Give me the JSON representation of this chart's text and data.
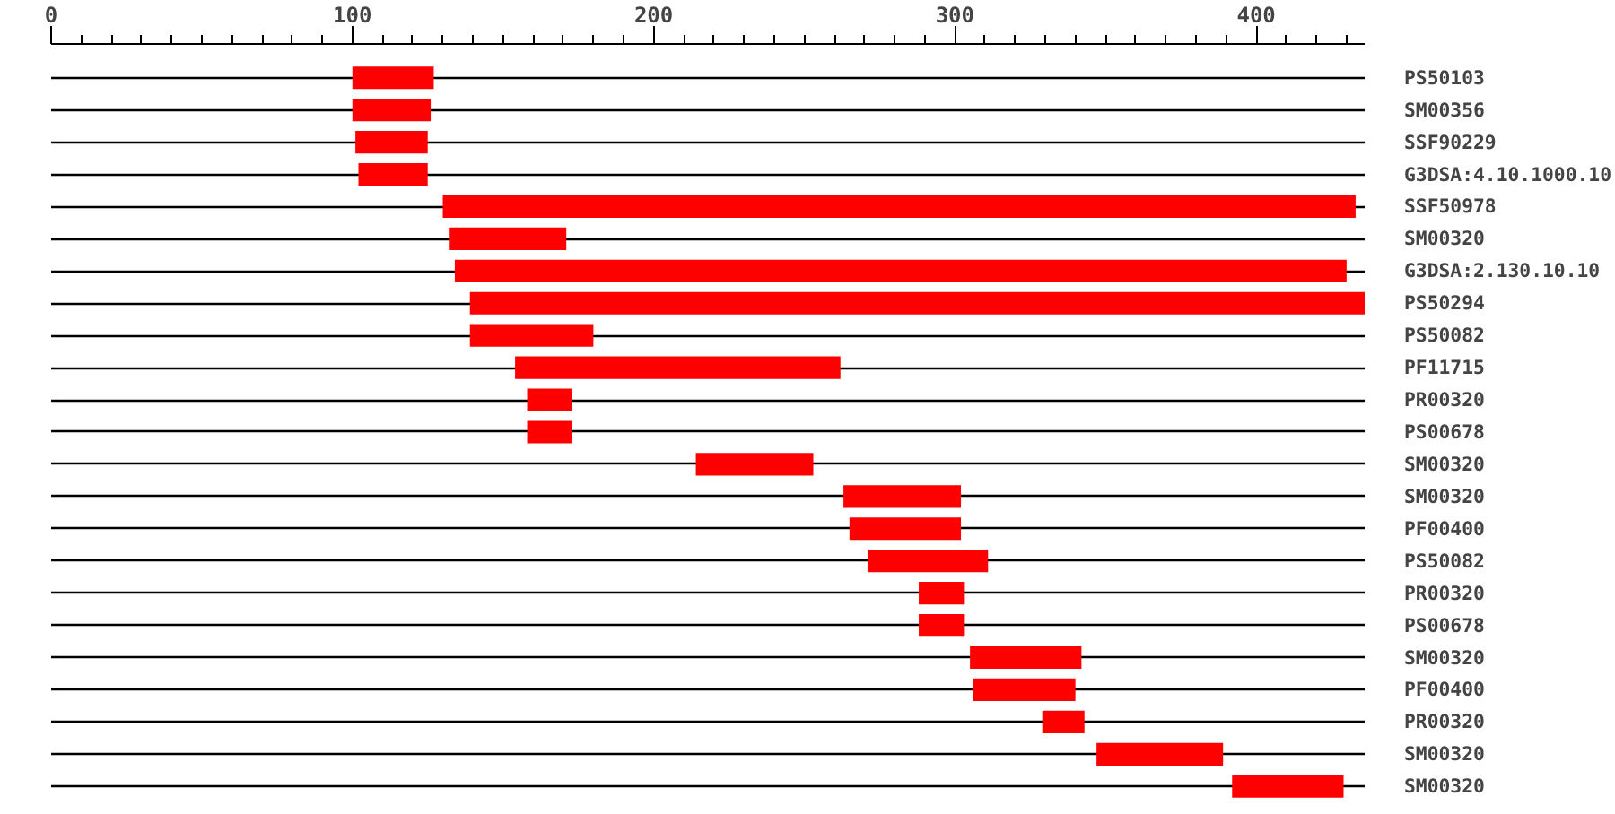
{
  "chart_data": {
    "type": "bar",
    "orientation": "horizontal",
    "categories": [
      "PS50103",
      "SM00356",
      "SSF90229",
      "G3DSA:4.10.1000.10",
      "SSF50978",
      "SM00320",
      "G3DSA:2.130.10.10",
      "PS50294",
      "PS50082",
      "PF11715",
      "PR00320",
      "PS00678",
      "SM00320",
      "SM00320",
      "PF00400",
      "PS50082",
      "PR00320",
      "PS00678",
      "SM00320",
      "PF00400",
      "PR00320",
      "SM00320",
      "SM00320"
    ],
    "base": [
      100,
      100,
      101,
      102,
      130,
      132,
      134,
      139,
      139,
      154,
      158,
      158,
      214,
      263,
      265,
      271,
      288,
      288,
      305,
      306,
      329,
      347,
      392
    ],
    "values": [
      27,
      26,
      24,
      23,
      303,
      39,
      296,
      297,
      41,
      108,
      15,
      15,
      39,
      39,
      37,
      40,
      15,
      15,
      37,
      34,
      14,
      42,
      37
    ],
    "color": "#ff0000",
    "xlim": [
      0,
      436
    ],
    "xticks": [
      0,
      {
        "value": 10,
        "label": null
      },
      {
        "value": 20,
        "label": null
      },
      {
        "value": 30,
        "label": null
      },
      {
        "value": 40,
        "label": null
      },
      {
        "value": 50,
        "label": null
      },
      {
        "value": 60,
        "label": null
      },
      {
        "value": 70,
        "label": null
      },
      {
        "value": 80,
        "label": null
      },
      {
        "value": 90,
        "label": null
      },
      100,
      {
        "value": 110,
        "label": null
      },
      {
        "value": 120,
        "label": null
      },
      {
        "value": 130,
        "label": null
      },
      {
        "value": 140,
        "label": null
      },
      {
        "value": 150,
        "label": null
      },
      {
        "value": 160,
        "label": null
      },
      {
        "value": 170,
        "label": null
      },
      {
        "value": 180,
        "label": null
      },
      {
        "value": 190,
        "label": null
      },
      200,
      {
        "value": 210,
        "label": null
      },
      {
        "value": 220,
        "label": null
      },
      {
        "value": 230,
        "label": null
      },
      {
        "value": 240,
        "label": null
      },
      {
        "value": 250,
        "label": null
      },
      {
        "value": 260,
        "label": null
      },
      {
        "value": 270,
        "label": null
      },
      {
        "value": 280,
        "label": null
      },
      {
        "value": 290,
        "label": null
      },
      300,
      {
        "value": 310,
        "label": null
      },
      {
        "value": 320,
        "label": null
      },
      {
        "value": 330,
        "label": null
      },
      {
        "value": 340,
        "label": null
      },
      {
        "value": 350,
        "label": null
      },
      {
        "value": 360,
        "label": null
      },
      {
        "value": 370,
        "label": null
      },
      {
        "value": 380,
        "label": null
      },
      {
        "value": 390,
        "label": null
      },
      400,
      {
        "value": 410,
        "label": null
      },
      {
        "value": 420,
        "label": null
      },
      {
        "value": 430,
        "label": null
      }
    ],
    "grid": "y"
  }
}
